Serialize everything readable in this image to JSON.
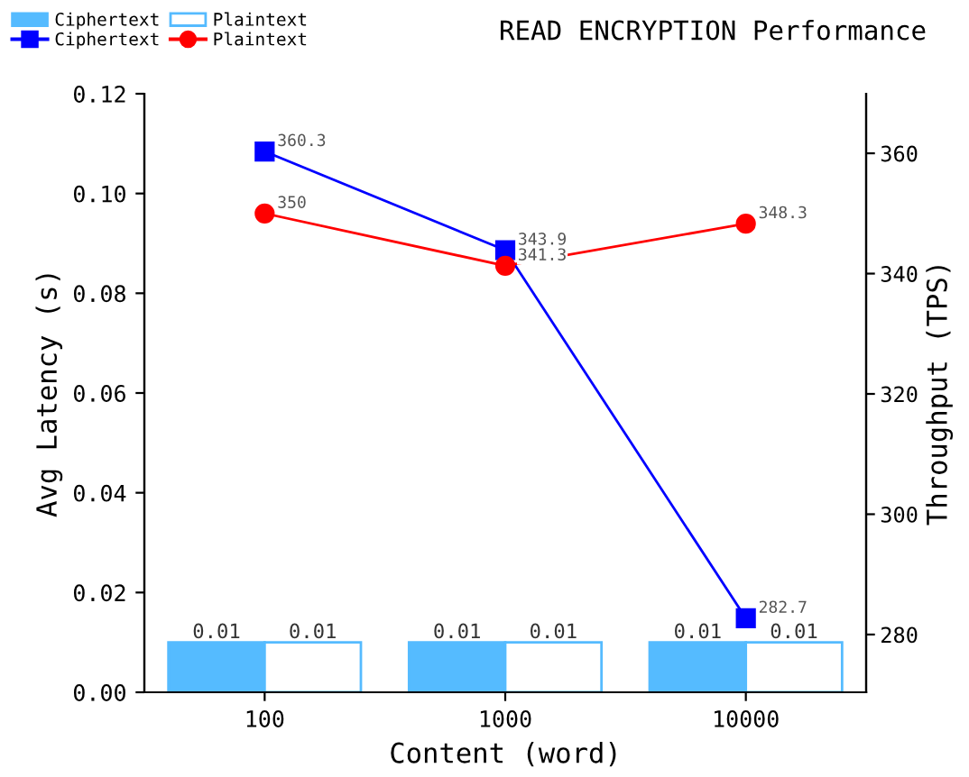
{
  "chart_data": {
    "type": "bar",
    "title": "READ ENCRYPTION Performance",
    "xlabel": "Content (word)",
    "ylabel": "Avg Latency (s)",
    "y2label": "Throughput (TPS)",
    "categories": [
      "100",
      "1000",
      "10000"
    ],
    "series": [
      {
        "name": "Ciphertext",
        "color": "#55bbff",
        "values": [
          0.01,
          0.01,
          0.01
        ]
      },
      {
        "name": "Plaintext",
        "color": "#ffffff",
        "values": [
          0.01,
          0.01,
          0.01
        ]
      },
      {
        "name": "Ciphertext",
        "type": "line",
        "axis": "y2",
        "color": "#0000ff",
        "marker": "square",
        "values": [
          360.3,
          343.9,
          282.7
        ]
      },
      {
        "name": "Plaintext",
        "type": "line",
        "axis": "y2",
        "color": "#ff0000",
        "marker": "circle",
        "values": [
          350,
          341.3,
          348.3
        ]
      }
    ],
    "ylim": [
      0,
      0.12
    ],
    "yticks": [
      {
        "value": 0,
        "label": "0.00"
      },
      0.02,
      0.04,
      0.06,
      0.08,
      {
        "value": 0.1,
        "label": "0.10"
      },
      0.12
    ],
    "y2lim": [
      270.4,
      369.9
    ],
    "y2ticks": [
      280,
      300,
      320,
      340,
      360
    ],
    "data_labels": true,
    "legend": "top left",
    "grid": false
  }
}
